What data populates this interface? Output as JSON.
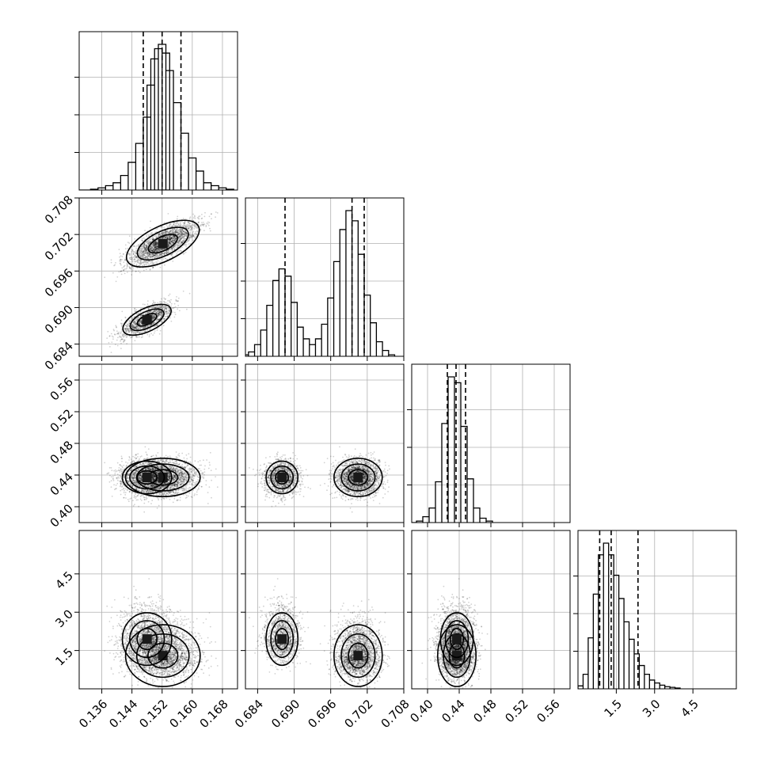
{
  "chart_data": {
    "type": "corner",
    "grid": true,
    "params": [
      {
        "range": [
          0.13,
          0.172
        ],
        "ticks": [
          0.136,
          0.144,
          0.152,
          0.16,
          0.168
        ],
        "tick_labels": [
          "0.136",
          "0.144",
          "0.152",
          "0.160",
          "0.168"
        ],
        "quantiles": [
          0.147,
          0.152,
          0.157
        ],
        "hist": [
          {
            "x": 0.134,
            "h": 0.005
          },
          {
            "x": 0.136,
            "h": 0.015
          },
          {
            "x": 0.138,
            "h": 0.03
          },
          {
            "x": 0.14,
            "h": 0.05
          },
          {
            "x": 0.142,
            "h": 0.1
          },
          {
            "x": 0.144,
            "h": 0.19
          },
          {
            "x": 0.146,
            "h": 0.32
          },
          {
            "x": 0.148,
            "h": 0.5
          },
          {
            "x": 0.149,
            "h": 0.72
          },
          {
            "x": 0.15,
            "h": 0.9
          },
          {
            "x": 0.151,
            "h": 0.97
          },
          {
            "x": 0.152,
            "h": 1.0
          },
          {
            "x": 0.153,
            "h": 0.94
          },
          {
            "x": 0.154,
            "h": 0.82
          },
          {
            "x": 0.156,
            "h": 0.6
          },
          {
            "x": 0.158,
            "h": 0.39
          },
          {
            "x": 0.16,
            "h": 0.22
          },
          {
            "x": 0.162,
            "h": 0.13
          },
          {
            "x": 0.164,
            "h": 0.05
          },
          {
            "x": 0.166,
            "h": 0.03
          },
          {
            "x": 0.168,
            "h": 0.015
          },
          {
            "x": 0.17,
            "h": 0.005
          }
        ]
      },
      {
        "range": [
          0.682,
          0.708
        ],
        "ticks": [
          0.684,
          0.69,
          0.696,
          0.702,
          0.708
        ],
        "tick_labels": [
          "0.684",
          "0.690",
          "0.696",
          "0.702",
          "0.708"
        ],
        "quantiles": [
          0.6885,
          0.6995,
          0.7015
        ],
        "hist": [
          {
            "x": 0.682,
            "h": 0.01
          },
          {
            "x": 0.683,
            "h": 0.03
          },
          {
            "x": 0.684,
            "h": 0.08
          },
          {
            "x": 0.685,
            "h": 0.18
          },
          {
            "x": 0.686,
            "h": 0.35
          },
          {
            "x": 0.687,
            "h": 0.52
          },
          {
            "x": 0.688,
            "h": 0.6
          },
          {
            "x": 0.689,
            "h": 0.55
          },
          {
            "x": 0.69,
            "h": 0.37
          },
          {
            "x": 0.691,
            "h": 0.2
          },
          {
            "x": 0.692,
            "h": 0.12
          },
          {
            "x": 0.693,
            "h": 0.08
          },
          {
            "x": 0.694,
            "h": 0.12
          },
          {
            "x": 0.695,
            "h": 0.22
          },
          {
            "x": 0.696,
            "h": 0.4
          },
          {
            "x": 0.697,
            "h": 0.65
          },
          {
            "x": 0.698,
            "h": 0.87
          },
          {
            "x": 0.699,
            "h": 1.0
          },
          {
            "x": 0.7,
            "h": 0.93
          },
          {
            "x": 0.701,
            "h": 0.7
          },
          {
            "x": 0.702,
            "h": 0.42
          },
          {
            "x": 0.703,
            "h": 0.23
          },
          {
            "x": 0.704,
            "h": 0.1
          },
          {
            "x": 0.705,
            "h": 0.04
          },
          {
            "x": 0.706,
            "h": 0.01
          }
        ]
      },
      {
        "range": [
          0.38,
          0.58
        ],
        "ticks": [
          0.4,
          0.44,
          0.48,
          0.52,
          0.56
        ],
        "tick_labels": [
          "0.40",
          "0.44",
          "0.48",
          "0.52",
          "0.56"
        ],
        "quantiles": [
          0.425,
          0.436,
          0.448
        ],
        "hist": [
          {
            "x": 0.39,
            "h": 0.01
          },
          {
            "x": 0.398,
            "h": 0.04
          },
          {
            "x": 0.406,
            "h": 0.1
          },
          {
            "x": 0.414,
            "h": 0.28
          },
          {
            "x": 0.422,
            "h": 0.68
          },
          {
            "x": 0.43,
            "h": 1.0
          },
          {
            "x": 0.438,
            "h": 0.96
          },
          {
            "x": 0.446,
            "h": 0.66
          },
          {
            "x": 0.454,
            "h": 0.3
          },
          {
            "x": 0.462,
            "h": 0.1
          },
          {
            "x": 0.47,
            "h": 0.03
          },
          {
            "x": 0.478,
            "h": 0.01
          }
        ]
      },
      {
        "range": [
          0.0,
          6.2
        ],
        "ticks": [
          1.5,
          3.0,
          4.5
        ],
        "tick_labels": [
          "1.5",
          "3.0",
          "4.5"
        ],
        "quantiles": [
          0.85,
          1.3,
          2.35
        ],
        "hist": [
          {
            "x": 0.1,
            "h": 0.02
          },
          {
            "x": 0.3,
            "h": 0.1
          },
          {
            "x": 0.5,
            "h": 0.35
          },
          {
            "x": 0.7,
            "h": 0.65
          },
          {
            "x": 0.9,
            "h": 0.92
          },
          {
            "x": 1.1,
            "h": 1.0
          },
          {
            "x": 1.3,
            "h": 0.92
          },
          {
            "x": 1.5,
            "h": 0.78
          },
          {
            "x": 1.7,
            "h": 0.62
          },
          {
            "x": 1.9,
            "h": 0.46
          },
          {
            "x": 2.1,
            "h": 0.34
          },
          {
            "x": 2.3,
            "h": 0.24
          },
          {
            "x": 2.5,
            "h": 0.16
          },
          {
            "x": 2.7,
            "h": 0.1
          },
          {
            "x": 2.9,
            "h": 0.06
          },
          {
            "x": 3.1,
            "h": 0.04
          },
          {
            "x": 3.3,
            "h": 0.025
          },
          {
            "x": 3.5,
            "h": 0.015
          },
          {
            "x": 3.7,
            "h": 0.01
          },
          {
            "x": 3.9,
            "h": 0.005
          }
        ]
      }
    ],
    "modes": [
      {
        "mu": [
          0.1522,
          0.7005,
          0.437,
          1.3
        ],
        "sigma": [
          0.0045,
          0.0018,
          0.011,
          0.55
        ]
      },
      {
        "mu": [
          0.148,
          0.688,
          0.437,
          1.95
        ],
        "sigma": [
          0.0035,
          0.0014,
          0.011,
          0.55
        ]
      }
    ]
  }
}
